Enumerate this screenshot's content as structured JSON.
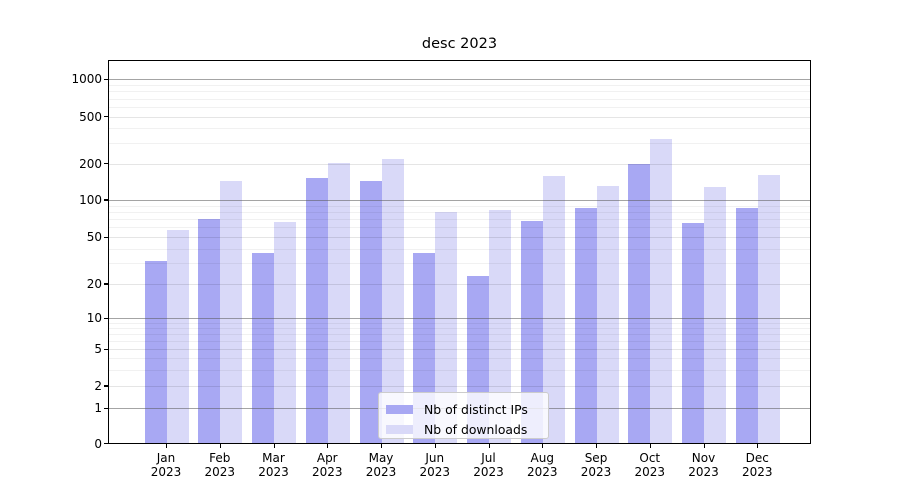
{
  "chart_data": {
    "type": "bar",
    "title": "desc 2023",
    "x_categories": [
      "Jan 2023",
      "Feb 2023",
      "Mar 2023",
      "Apr 2023",
      "May 2023",
      "Jun 2023",
      "Jul 2023",
      "Aug 2023",
      "Sep 2023",
      "Oct 2023",
      "Nov 2023",
      "Dec 2023"
    ],
    "series": [
      {
        "name": "Nb of distinct IPs",
        "color": "#a8a8f3",
        "values": [
          31,
          69,
          36,
          149,
          142,
          36,
          23,
          66,
          84,
          195,
          64,
          85
        ]
      },
      {
        "name": "Nb of downloads",
        "color": "#d9d9f8",
        "values": [
          56,
          140,
          65,
          199,
          214,
          78,
          81,
          156,
          128,
          318,
          126,
          158
        ]
      }
    ],
    "y_axis": {
      "scale": "symlog",
      "ticks": [
        {
          "value": 1000,
          "label": "1000"
        },
        {
          "value": 500,
          "label": "500"
        },
        {
          "value": 200,
          "label": "200"
        },
        {
          "value": 100,
          "label": "100"
        },
        {
          "value": 50,
          "label": "50"
        },
        {
          "value": 20,
          "label": "20"
        },
        {
          "value": 10,
          "label": "10"
        },
        {
          "value": 5,
          "label": "5"
        },
        {
          "value": 2,
          "label": "2"
        },
        {
          "value": 1,
          "label": "1"
        },
        {
          "value": 0,
          "label": "0"
        }
      ]
    },
    "grid": "on",
    "legend_position": "lower center"
  }
}
